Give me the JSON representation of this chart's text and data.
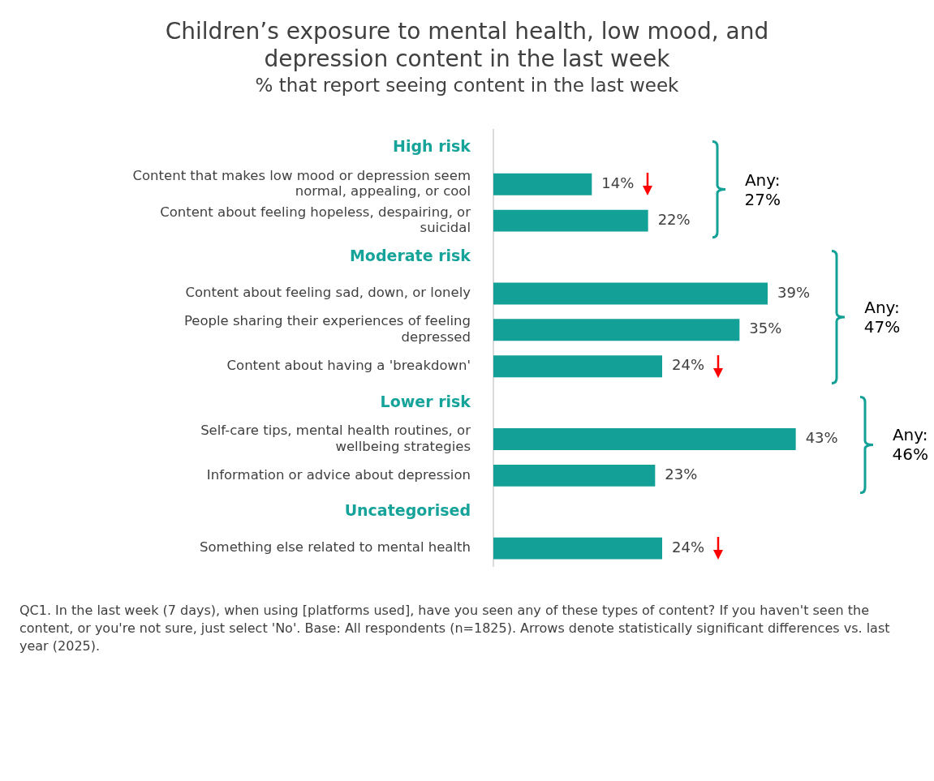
{
  "chart_data": {
    "type": "bar",
    "orientation": "horizontal",
    "title": "Children’s exposure to mental health, low mood, and depression content in the last week",
    "subtitle": "% that report seeing content in the last week",
    "categories": [
      "High risk",
      "Content that makes low mood or depression seem normal, appealing, or cool",
      "Content about feeling hopeless, despairing, or suicidal",
      "Moderate risk",
      "Content about feeling sad, down, or lonely",
      "People sharing their experiences of feeling depressed",
      "Content about having a 'breakdown'",
      "Lower risk",
      "Self-care tips, mental health routines, or wellbeing strategies",
      "Information or advice about depression",
      "Uncategorised",
      "Something else related to mental health"
    ],
    "values": [
      null,
      14,
      22,
      null,
      39,
      35,
      24,
      null,
      43,
      23,
      null,
      24
    ],
    "value_labels": [
      null,
      "14%",
      "22%",
      null,
      "39%",
      "35%",
      "24%",
      null,
      "43%",
      "23%",
      null,
      "24%"
    ],
    "color": "#13a096",
    "legend": false,
    "annotations": [
      "Any: 27%",
      "Any: 47%",
      "Any: 46%",
      "QC1. In the last week (7 days), when using [platforms used], have you seen any of these types of content? If you haven't seen the content, or you're not sure, just select 'No'. Base: All respondents (n=1825). Arrows denote statistically significant differences vs. last year (2025)."
    ]
  }
}
